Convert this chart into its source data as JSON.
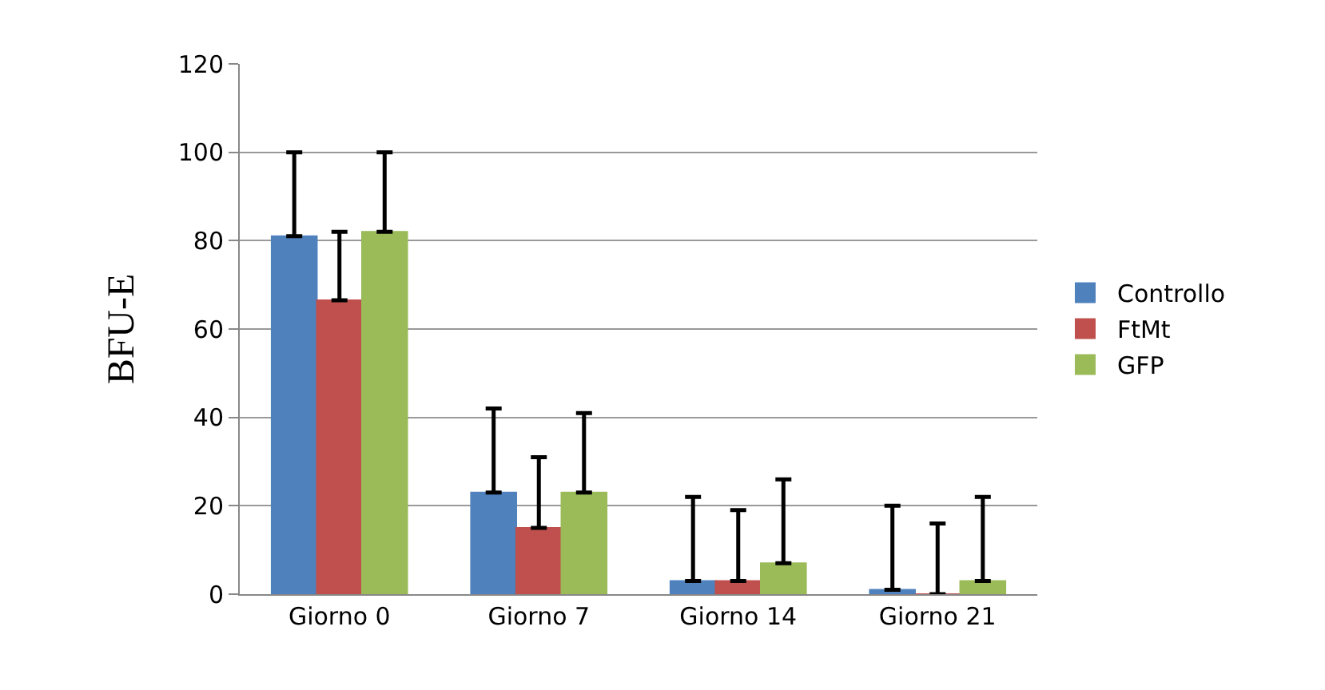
{
  "chart_data": {
    "type": "bar",
    "ylabel": "BFU-E",
    "categories": [
      "Giorno 0",
      "Giorno 7",
      "Giorno 14",
      "Giorno 21"
    ],
    "series": [
      {
        "name": "Controllo",
        "color": "#4f81bd",
        "values": [
          81,
          23,
          3,
          1
        ],
        "errors": [
          [
            81,
            100
          ],
          [
            23,
            42
          ],
          [
            3,
            22
          ],
          [
            1,
            20
          ]
        ]
      },
      {
        "name": "FtMt",
        "color": "#c0504d",
        "values": [
          66.5,
          15,
          3,
          0
        ],
        "errors": [
          [
            66.5,
            82
          ],
          [
            15,
            31
          ],
          [
            3,
            19
          ],
          [
            0,
            16
          ]
        ]
      },
      {
        "name": "GFP",
        "color": "#9bbb59",
        "values": [
          82,
          23,
          7,
          3
        ],
        "errors": [
          [
            82,
            100
          ],
          [
            23,
            41
          ],
          [
            7,
            26
          ],
          [
            3,
            22
          ]
        ]
      }
    ],
    "ylim": [
      0,
      120
    ],
    "yticks": [
      0,
      20,
      40,
      60,
      80,
      100,
      120
    ],
    "grid": "y",
    "legend": "right"
  }
}
